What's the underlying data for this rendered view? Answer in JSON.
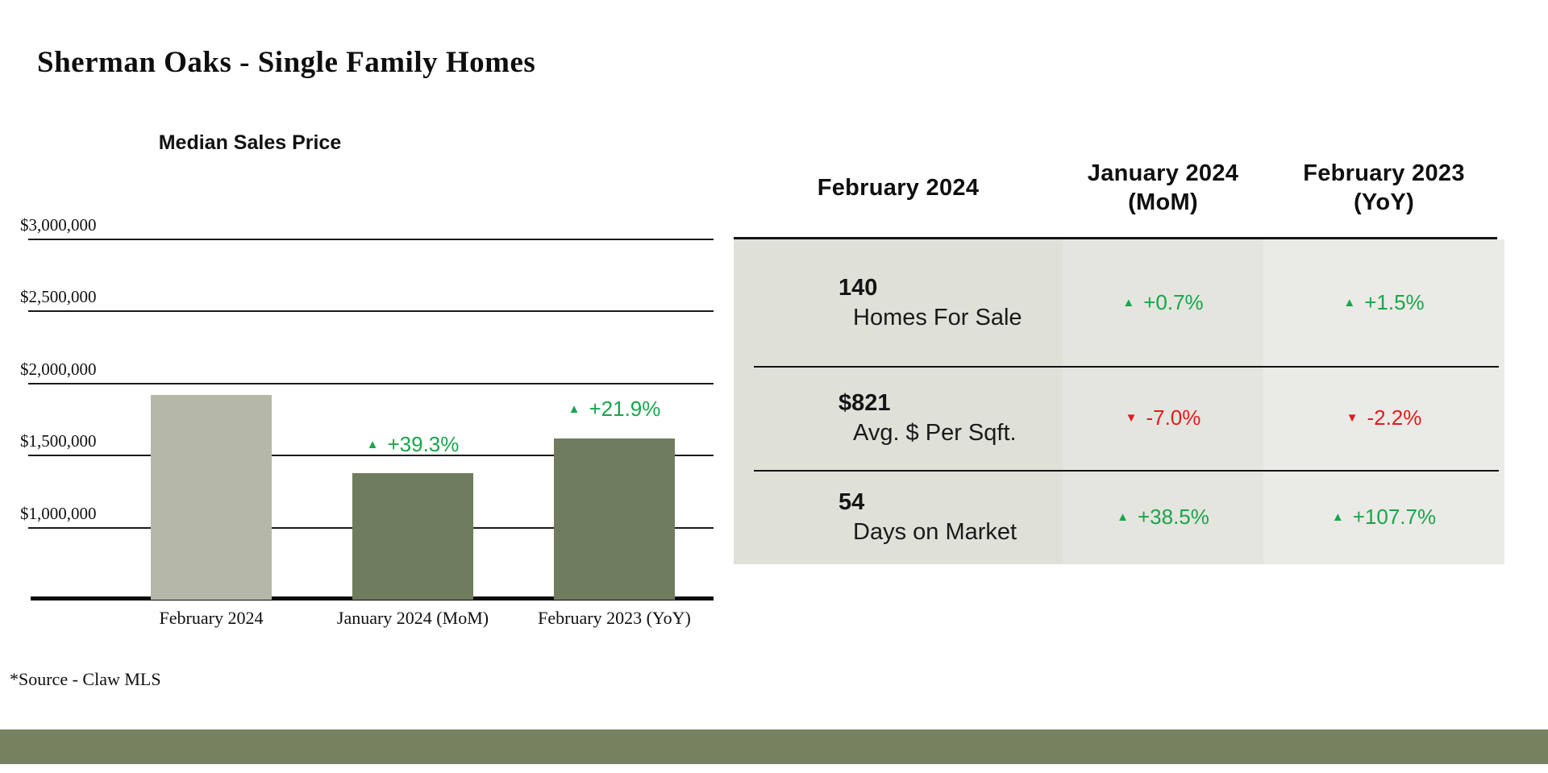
{
  "page": {
    "title": "Sherman Oaks - Single Family Homes",
    "source_note": "*Source - Claw MLS"
  },
  "chart_data": {
    "type": "bar",
    "title": "Median Sales Price",
    "categories": [
      "February 2024",
      "January 2024 (MoM)",
      "February 2023 (YoY)"
    ],
    "values": [
      1920000,
      1378000,
      1620000
    ],
    "changes": [
      null,
      "+39.3%",
      "+21.9%"
    ],
    "change_directions": [
      null,
      "up",
      "up"
    ],
    "ylabel": "",
    "xlabel": "",
    "ylim": [
      500000,
      3000000
    ],
    "yticks": [
      1000000,
      1500000,
      2000000,
      2500000,
      3000000
    ],
    "ytick_labels": [
      "$1,000,000",
      "$1,500,000",
      "$2,000,000",
      "$2,500,000",
      "$3,000,000"
    ],
    "grid": true,
    "legend": "none",
    "bar_colors": [
      "#b5b8a7",
      "#707c5e",
      "#707c5e"
    ]
  },
  "table": {
    "columns": [
      {
        "label": "February 2024",
        "sublabel": ""
      },
      {
        "label": "January 2024",
        "sublabel": "(MoM)"
      },
      {
        "label": "February 2023",
        "sublabel": "(YoY)"
      }
    ],
    "rows": [
      {
        "value": "140",
        "label": "Homes For Sale",
        "mom": {
          "dir": "up",
          "text": "+0.7%"
        },
        "yoy": {
          "dir": "up",
          "text": "+1.5%"
        }
      },
      {
        "value": "$821",
        "label": "Avg. $ Per Sqft.",
        "mom": {
          "dir": "down",
          "text": "-7.0%"
        },
        "yoy": {
          "dir": "down",
          "text": "-2.2%"
        }
      },
      {
        "value": "54",
        "label": "Days on Market",
        "mom": {
          "dir": "up",
          "text": "+38.5%"
        },
        "yoy": {
          "dir": "up",
          "text": "+107.7%"
        }
      }
    ]
  },
  "colors": {
    "positive": "#18a64b",
    "negative": "#e41b1f",
    "bar_light": "#b5b8a7",
    "bar_dark": "#707c5e",
    "footer": "#76825f",
    "grid_line": "#1a1a1a",
    "column_backgrounds": [
      "#dfe1d9",
      "#e4e5de",
      "#eaebe6"
    ]
  },
  "icons": {
    "up": "▲",
    "down": "▼"
  }
}
